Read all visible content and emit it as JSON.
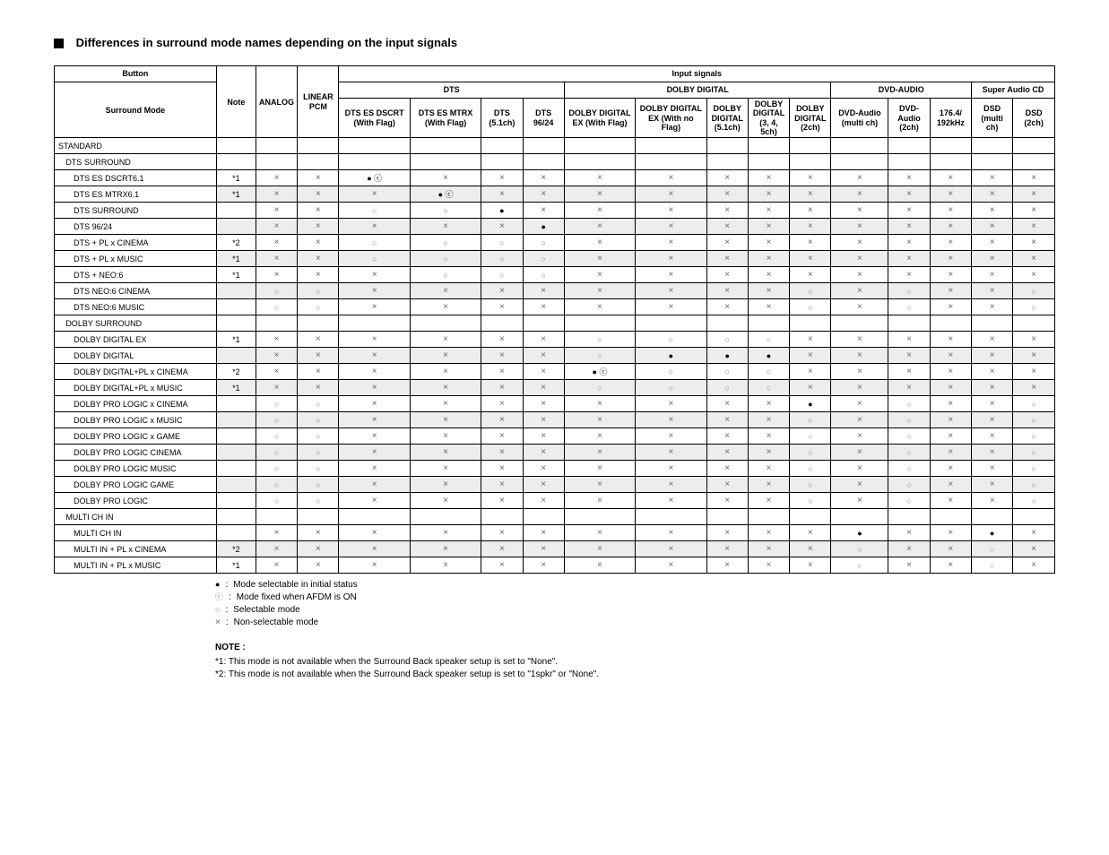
{
  "title": "Differences in surround mode names depending on the input signals",
  "headers": {
    "button": "Button",
    "surround_mode": "Surround Mode",
    "note": "Note",
    "analog": "ANALOG",
    "linear_pcm": "LINEAR PCM",
    "input_signals": "Input signals",
    "dts_group": "DTS",
    "dolby_digital_group": "DOLBY DIGITAL",
    "dvd_audio_group": "DVD-AUDIO",
    "super_audio_cd_group": "Super Audio CD",
    "dts_es_dscrt": "DTS ES DSCRT (With Flag)",
    "dts_es_mtrx": "DTS ES MTRX (With Flag)",
    "dts_51": "DTS (5.1ch)",
    "dts_9624": "DTS 96/24",
    "dolby_digital_ex_flag": "DOLBY DIGITAL EX (With Flag)",
    "dolby_digital_ex_noflag": "DOLBY DIGITAL EX (With no Flag)",
    "dolby_digital_51": "DOLBY DIGITAL (5.1ch)",
    "dolby_digital_345": "DOLBY DIGITAL (3, 4, 5ch)",
    "dolby_digital_2": "DOLBY DIGITAL (2ch)",
    "dvd_audio_multi": "DVD-Audio (multi ch)",
    "dvd_audio_2": "DVD-Audio (2ch)",
    "176_192": "176.4/ 192kHz",
    "dsd_multi": "DSD (multi ch)",
    "dsd_2": "DSD (2ch)"
  },
  "sections": [
    {
      "type": "header1",
      "label": "STANDARD"
    },
    {
      "type": "header2",
      "label": "DTS SURROUND"
    },
    {
      "type": "row",
      "name": "DTS ES DSCRT6.1",
      "note": "*1",
      "cells": [
        "x",
        "x",
        "dc",
        "x",
        "x",
        "x",
        "x",
        "x",
        "x",
        "x",
        "x",
        "x",
        "x",
        "x",
        "x",
        "x"
      ]
    },
    {
      "type": "row",
      "alt": true,
      "name": "DTS ES MTRX6.1",
      "note": "*1",
      "cells": [
        "x",
        "x",
        "x",
        "dc",
        "x",
        "x",
        "x",
        "x",
        "x",
        "x",
        "x",
        "x",
        "x",
        "x",
        "x",
        "x"
      ]
    },
    {
      "type": "row",
      "name": "DTS SURROUND",
      "note": "",
      "cells": [
        "x",
        "x",
        "o",
        "o",
        "d",
        "x",
        "x",
        "x",
        "x",
        "x",
        "x",
        "x",
        "x",
        "x",
        "x",
        "x"
      ]
    },
    {
      "type": "row",
      "alt": true,
      "name": "DTS 96/24",
      "note": "",
      "cells": [
        "x",
        "x",
        "x",
        "x",
        "x",
        "d",
        "x",
        "x",
        "x",
        "x",
        "x",
        "x",
        "x",
        "x",
        "x",
        "x"
      ]
    },
    {
      "type": "row",
      "name": "DTS + PL  x CINEMA",
      "note": "*2",
      "cells": [
        "x",
        "x",
        "o",
        "o",
        "o",
        "o",
        "x",
        "x",
        "x",
        "x",
        "x",
        "x",
        "x",
        "x",
        "x",
        "x"
      ]
    },
    {
      "type": "row",
      "alt": true,
      "name": "DTS + PL  x MUSIC",
      "note": "*1",
      "cells": [
        "x",
        "x",
        "o",
        "o",
        "o",
        "o",
        "x",
        "x",
        "x",
        "x",
        "x",
        "x",
        "x",
        "x",
        "x",
        "x"
      ]
    },
    {
      "type": "row",
      "name": "DTS + NEO:6",
      "note": "*1",
      "cells": [
        "x",
        "x",
        "x",
        "o",
        "o",
        "o",
        "x",
        "x",
        "x",
        "x",
        "x",
        "x",
        "x",
        "x",
        "x",
        "x"
      ]
    },
    {
      "type": "row",
      "alt": true,
      "name": "DTS NEO:6 CINEMA",
      "note": "",
      "cells": [
        "o",
        "o",
        "x",
        "x",
        "x",
        "x",
        "x",
        "x",
        "x",
        "x",
        "o",
        "x",
        "o",
        "x",
        "x",
        "o"
      ]
    },
    {
      "type": "row",
      "name": "DTS NEO:6 MUSIC",
      "note": "",
      "cells": [
        "o",
        "o",
        "x",
        "x",
        "x",
        "x",
        "x",
        "x",
        "x",
        "x",
        "o",
        "x",
        "o",
        "x",
        "x",
        "o"
      ]
    },
    {
      "type": "header2",
      "label": "DOLBY SURROUND"
    },
    {
      "type": "row",
      "name": "DOLBY DIGITAL EX",
      "note": "*1",
      "cells": [
        "x",
        "x",
        "x",
        "x",
        "x",
        "x",
        "o",
        "o",
        "o",
        "o",
        "x",
        "x",
        "x",
        "x",
        "x",
        "x"
      ]
    },
    {
      "type": "row",
      "alt": true,
      "name": "DOLBY DIGITAL",
      "note": "",
      "cells": [
        "x",
        "x",
        "x",
        "x",
        "x",
        "x",
        "o",
        "d",
        "d",
        "d",
        "x",
        "x",
        "x",
        "x",
        "x",
        "x"
      ]
    },
    {
      "type": "row",
      "name": "DOLBY DIGITAL+PL  x CINEMA",
      "note": "*2",
      "cells": [
        "x",
        "x",
        "x",
        "x",
        "x",
        "x",
        "dc",
        "o",
        "o",
        "o",
        "x",
        "x",
        "x",
        "x",
        "x",
        "x"
      ]
    },
    {
      "type": "row",
      "alt": true,
      "name": "DOLBY DIGITAL+PL  x MUSIC",
      "note": "*1",
      "cells": [
        "x",
        "x",
        "x",
        "x",
        "x",
        "x",
        "o",
        "o",
        "o",
        "o",
        "x",
        "x",
        "x",
        "x",
        "x",
        "x"
      ]
    },
    {
      "type": "row",
      "name": "DOLBY PRO LOGIC  x CINEMA",
      "note": "",
      "cells": [
        "o",
        "o",
        "x",
        "x",
        "x",
        "x",
        "x",
        "x",
        "x",
        "x",
        "d",
        "x",
        "o",
        "x",
        "x",
        "o"
      ]
    },
    {
      "type": "row",
      "alt": true,
      "name": "DOLBY PRO LOGIC  x MUSIC",
      "note": "",
      "cells": [
        "o",
        "o",
        "x",
        "x",
        "x",
        "x",
        "x",
        "x",
        "x",
        "x",
        "o",
        "x",
        "o",
        "x",
        "x",
        "o"
      ]
    },
    {
      "type": "row",
      "name": "DOLBY PRO LOGIC  x GAME",
      "note": "",
      "cells": [
        "o",
        "o",
        "x",
        "x",
        "x",
        "x",
        "x",
        "x",
        "x",
        "x",
        "o",
        "x",
        "o",
        "x",
        "x",
        "o"
      ]
    },
    {
      "type": "row",
      "alt": true,
      "name": "DOLBY PRO LOGIC   CINEMA",
      "note": "",
      "cells": [
        "o",
        "o",
        "x",
        "x",
        "x",
        "x",
        "x",
        "x",
        "x",
        "x",
        "o",
        "x",
        "o",
        "x",
        "x",
        "o"
      ]
    },
    {
      "type": "row",
      "name": "DOLBY PRO LOGIC   MUSIC",
      "note": "",
      "cells": [
        "o",
        "o",
        "x",
        "x",
        "x",
        "x",
        "x",
        "x",
        "x",
        "x",
        "o",
        "x",
        "o",
        "x",
        "x",
        "o"
      ]
    },
    {
      "type": "row",
      "alt": true,
      "name": "DOLBY PRO LOGIC   GAME",
      "note": "",
      "cells": [
        "o",
        "o",
        "x",
        "x",
        "x",
        "x",
        "x",
        "x",
        "x",
        "x",
        "o",
        "x",
        "o",
        "x",
        "x",
        "o"
      ]
    },
    {
      "type": "row",
      "name": "DOLBY PRO LOGIC",
      "note": "",
      "cells": [
        "o",
        "o",
        "x",
        "x",
        "x",
        "x",
        "x",
        "x",
        "x",
        "x",
        "o",
        "x",
        "o",
        "x",
        "x",
        "o"
      ]
    },
    {
      "type": "header2",
      "label": "MULTI CH IN"
    },
    {
      "type": "row",
      "name": "MULTI CH IN",
      "note": "",
      "cells": [
        "x",
        "x",
        "x",
        "x",
        "x",
        "x",
        "x",
        "x",
        "x",
        "x",
        "x",
        "d",
        "x",
        "x",
        "d",
        "x"
      ]
    },
    {
      "type": "row",
      "alt": true,
      "name": "MULTI IN + PL  x CINEMA",
      "note": "*2",
      "cells": [
        "x",
        "x",
        "x",
        "x",
        "x",
        "x",
        "x",
        "x",
        "x",
        "x",
        "x",
        "o",
        "x",
        "x",
        "o",
        "x"
      ]
    },
    {
      "type": "row",
      "name": "MULTI IN + PL  x MUSIC",
      "note": "*1",
      "cells": [
        "x",
        "x",
        "x",
        "x",
        "x",
        "x",
        "x",
        "x",
        "x",
        "x",
        "x",
        "o",
        "x",
        "x",
        "o",
        "x"
      ]
    }
  ],
  "legend": {
    "l1": "Mode selectable in initial status",
    "l2": "Mode fixed when AFDM is ON",
    "l3": "Selectable mode",
    "l4": "Non-selectable mode"
  },
  "notes": {
    "title": "NOTE :",
    "n1": "*1:  This mode is not available when the Surround Back speaker setup is set to \"None\".",
    "n2": "*2:  This mode is not available when the Surround Back speaker setup is set to \"1spkr\" or \"None\"."
  }
}
